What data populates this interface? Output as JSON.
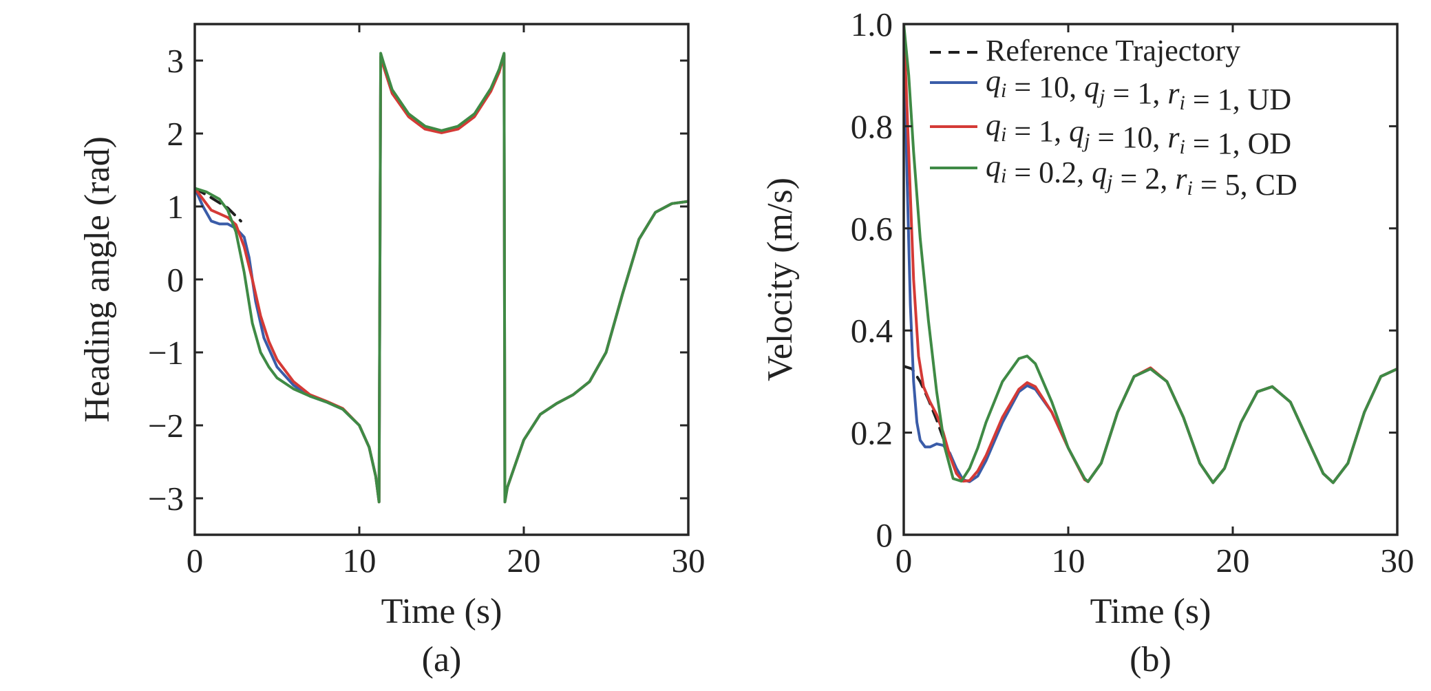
{
  "chart_data": [
    {
      "type": "line",
      "panel_label": "(a)",
      "xlabel": "Time (s)",
      "ylabel": "Heading angle (rad)",
      "xlim": [
        0,
        30
      ],
      "ylim": [
        -3.5,
        3.5
      ],
      "xticks": [
        0,
        10,
        20,
        30
      ],
      "xtick_labels": [
        "0",
        "10",
        "20",
        "30"
      ],
      "yticks": [
        -3,
        -2,
        -1,
        0,
        1,
        2,
        3
      ],
      "ytick_labels": [
        "−3",
        "−2",
        "−1",
        "0",
        "1",
        "2",
        "3"
      ],
      "grid": false,
      "series": [
        {
          "color": "#1f1f1f",
          "dash": "dashed",
          "x": [
            0,
            1,
            2,
            2.8
          ],
          "y": [
            1.25,
            1.12,
            0.98,
            0.8
          ]
        },
        {
          "color": "#3a5ca8",
          "x": [
            0,
            0.5,
            1,
            1.5,
            2,
            2.5,
            3,
            3.3,
            3.7,
            4.2,
            5,
            6,
            7,
            8,
            9,
            10,
            10.6,
            11,
            11.2,
            11.3,
            11.5,
            12,
            13,
            14,
            15,
            16,
            17,
            18,
            18.5,
            18.8,
            18.85,
            19,
            20,
            21,
            22,
            23,
            24,
            25,
            26,
            27,
            28,
            29,
            30
          ],
          "y": [
            1.25,
            1.0,
            0.8,
            0.76,
            0.76,
            0.7,
            0.58,
            0.3,
            -0.3,
            -0.8,
            -1.2,
            -1.45,
            -1.6,
            -1.68,
            -1.78,
            -2.0,
            -2.3,
            -2.7,
            -3.05,
            3.05,
            2.9,
            2.55,
            2.25,
            2.08,
            2.03,
            2.08,
            2.25,
            2.6,
            2.85,
            3.08,
            -3.05,
            -2.85,
            -2.2,
            -1.85,
            -1.7,
            -1.58,
            -1.4,
            -1.0,
            -0.2,
            0.55,
            0.92,
            1.04,
            1.07
          ]
        },
        {
          "color": "#d43a36",
          "x": [
            0,
            0.5,
            1,
            1.5,
            2,
            2.5,
            3,
            3.5,
            4,
            4.5,
            5,
            6,
            7,
            8,
            9,
            10,
            10.6,
            11,
            11.2,
            11.3,
            11.5,
            12,
            13,
            14,
            15,
            16,
            17,
            18,
            18.5,
            18.8,
            18.85,
            19,
            20,
            21,
            22,
            23,
            24,
            25,
            26,
            27,
            28,
            29,
            30
          ],
          "y": [
            1.25,
            1.1,
            0.95,
            0.9,
            0.85,
            0.75,
            0.45,
            0.0,
            -0.5,
            -0.85,
            -1.1,
            -1.4,
            -1.58,
            -1.67,
            -1.77,
            -2.0,
            -2.3,
            -2.7,
            -3.05,
            3.05,
            2.9,
            2.55,
            2.23,
            2.06,
            2.01,
            2.06,
            2.23,
            2.58,
            2.84,
            3.08,
            -3.05,
            -2.85,
            -2.2,
            -1.85,
            -1.7,
            -1.58,
            -1.4,
            -1.0,
            -0.2,
            0.55,
            0.92,
            1.04,
            1.07
          ]
        },
        {
          "color": "#3f8a45",
          "x": [
            0,
            0.7,
            1.5,
            2,
            2.5,
            3,
            3.5,
            4,
            4.5,
            5,
            6,
            7,
            8,
            9,
            10,
            10.6,
            11,
            11.2,
            11.3,
            11.5,
            12,
            13,
            14,
            15,
            16,
            17,
            18,
            18.5,
            18.8,
            18.85,
            19,
            20,
            21,
            22,
            23,
            24,
            25,
            26,
            27,
            28,
            29,
            30
          ],
          "y": [
            1.25,
            1.2,
            1.1,
            0.95,
            0.65,
            0.1,
            -0.6,
            -1.0,
            -1.2,
            -1.35,
            -1.5,
            -1.6,
            -1.68,
            -1.78,
            -2.0,
            -2.3,
            -2.7,
            -3.05,
            3.1,
            2.95,
            2.6,
            2.27,
            2.1,
            2.04,
            2.1,
            2.27,
            2.62,
            2.88,
            3.1,
            -3.05,
            -2.85,
            -2.2,
            -1.85,
            -1.7,
            -1.58,
            -1.4,
            -1.0,
            -0.2,
            0.55,
            0.92,
            1.04,
            1.07
          ]
        }
      ]
    },
    {
      "type": "line",
      "panel_label": "(b)",
      "xlabel": "Time (s)",
      "ylabel": "Velocity (m/s)",
      "xlim": [
        0,
        30
      ],
      "ylim": [
        0,
        1
      ],
      "xticks": [
        0,
        10,
        20,
        30
      ],
      "xtick_labels": [
        "0",
        "10",
        "20",
        "30"
      ],
      "yticks": [
        0,
        0.2,
        0.4,
        0.6,
        0.8,
        1.0
      ],
      "ytick_labels": [
        "0",
        "0.2",
        "0.4",
        "0.6",
        "0.8",
        "1.0"
      ],
      "grid": false,
      "legend": {
        "placement": "top-right",
        "entries": [
          {
            "color": "#1f1f1f",
            "dash": "dashed",
            "label": "Reference Trajectory"
          },
          {
            "color": "#3a5ca8",
            "dash": "solid",
            "parts": [
              [
                "q",
                "i"
              ],
              " = 10, ",
              [
                "q",
                "j"
              ],
              " = 1, ",
              [
                "r",
                "i"
              ],
              " = 1, UD"
            ]
          },
          {
            "color": "#d43a36",
            "dash": "solid",
            "parts": [
              [
                "q",
                "i"
              ],
              " = 1, ",
              [
                "q",
                "j"
              ],
              " = 10, ",
              [
                "r",
                "i"
              ],
              " = 1, OD"
            ]
          },
          {
            "color": "#3f8a45",
            "dash": "solid",
            "parts": [
              [
                "q",
                "i"
              ],
              " = 0.2, ",
              [
                "q",
                "j"
              ],
              " = 2, ",
              [
                "r",
                "i"
              ],
              " = 5, CD"
            ]
          }
        ]
      },
      "series": [
        {
          "color": "#1f1f1f",
          "dash": "dashed",
          "x": [
            0,
            0.5,
            1,
            1.5,
            2,
            2.5,
            3
          ],
          "y": [
            0.33,
            0.325,
            0.3,
            0.265,
            0.225,
            0.18,
            0.14
          ]
        },
        {
          "color": "#3a5ca8",
          "x": [
            0,
            0.2,
            0.4,
            0.6,
            0.8,
            1,
            1.3,
            1.6,
            2,
            2.4,
            2.8,
            3.2,
            3.6,
            4,
            4.5,
            5,
            6,
            7,
            7.5,
            8,
            9,
            10,
            11,
            11.2,
            12,
            13,
            14,
            15,
            16,
            17,
            18,
            18.8,
            19.5,
            20.5,
            21.5,
            22.4,
            23.5,
            24.5,
            25.5,
            26.1,
            27,
            28,
            29,
            30
          ],
          "y": [
            1.0,
            0.7,
            0.45,
            0.3,
            0.22,
            0.185,
            0.172,
            0.172,
            0.178,
            0.175,
            0.16,
            0.13,
            0.108,
            0.104,
            0.115,
            0.145,
            0.22,
            0.28,
            0.292,
            0.285,
            0.24,
            0.17,
            0.108,
            0.104,
            0.14,
            0.24,
            0.31,
            0.325,
            0.3,
            0.23,
            0.14,
            0.102,
            0.13,
            0.22,
            0.28,
            0.29,
            0.26,
            0.19,
            0.12,
            0.102,
            0.14,
            0.24,
            0.31,
            0.325
          ]
        },
        {
          "color": "#d43a36",
          "x": [
            0,
            0.3,
            0.6,
            0.9,
            1.2,
            1.6,
            2,
            2.4,
            2.8,
            3.2,
            3.6,
            4,
            4.5,
            5,
            6,
            7,
            7.5,
            8,
            9,
            10,
            11,
            11.2,
            12,
            13,
            14,
            15,
            16,
            17,
            18,
            18.8,
            19.5,
            20.5,
            21.5,
            22.4,
            23.5,
            24.5,
            25.5,
            26.1,
            27,
            28,
            29,
            30
          ],
          "y": [
            1.0,
            0.75,
            0.5,
            0.35,
            0.29,
            0.26,
            0.235,
            0.2,
            0.155,
            0.12,
            0.105,
            0.106,
            0.125,
            0.155,
            0.23,
            0.285,
            0.298,
            0.29,
            0.24,
            0.17,
            0.108,
            0.104,
            0.14,
            0.24,
            0.31,
            0.327,
            0.3,
            0.23,
            0.14,
            0.102,
            0.13,
            0.22,
            0.28,
            0.29,
            0.26,
            0.19,
            0.12,
            0.102,
            0.14,
            0.24,
            0.31,
            0.325
          ]
        },
        {
          "color": "#3f8a45",
          "x": [
            0,
            0.3,
            0.6,
            1,
            1.5,
            2,
            2.5,
            3,
            3.5,
            4,
            4.5,
            5,
            6,
            7,
            7.5,
            8,
            9,
            10,
            11,
            11.2,
            12,
            13,
            14,
            15,
            16,
            17,
            18,
            18.8,
            19.5,
            20.5,
            21.5,
            22.4,
            23.5,
            24.5,
            25.5,
            26.1,
            27,
            28,
            29,
            30
          ],
          "y": [
            1.0,
            0.9,
            0.75,
            0.58,
            0.42,
            0.28,
            0.17,
            0.11,
            0.105,
            0.13,
            0.17,
            0.22,
            0.3,
            0.345,
            0.35,
            0.335,
            0.26,
            0.17,
            0.11,
            0.104,
            0.14,
            0.24,
            0.31,
            0.325,
            0.3,
            0.23,
            0.14,
            0.102,
            0.13,
            0.22,
            0.28,
            0.29,
            0.26,
            0.19,
            0.12,
            0.102,
            0.14,
            0.24,
            0.31,
            0.325
          ]
        }
      ]
    }
  ]
}
